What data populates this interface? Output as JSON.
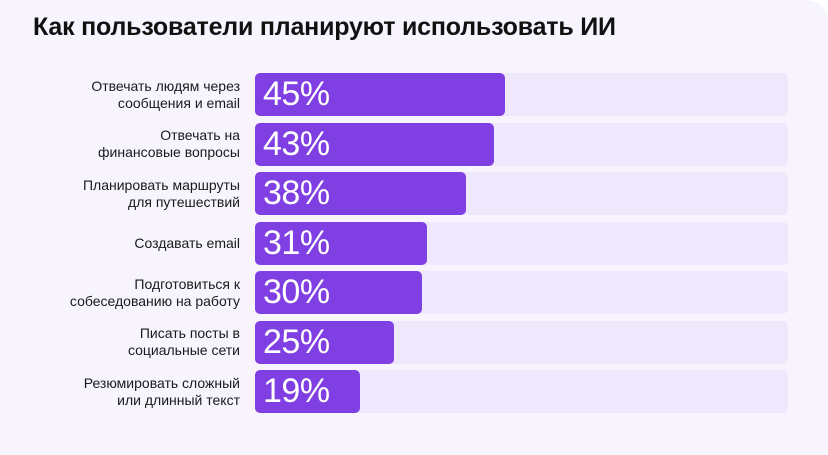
{
  "title": "Как пользователи планируют использовать ИИ",
  "colors": {
    "bar": "#7f3fe2",
    "track": "#efe8fc",
    "background": "#f7f4fe",
    "value_text": "#ffffff"
  },
  "chart_data": {
    "type": "bar",
    "orientation": "horizontal",
    "title": "Как пользователи планируют использовать ИИ",
    "categories": [
      "Отвечать людям через\nсообщения и email",
      "Отвечать на\nфинансовые вопросы",
      "Планировать маршруты\nдля путешествий",
      "Создавать email",
      "Подготовиться к\nсобеседованию на работу",
      "Писать посты в\nсоциальные сети",
      "Резюмировать сложный\nили длинный текст"
    ],
    "values": [
      45,
      43,
      38,
      31,
      30,
      25,
      19
    ],
    "value_labels": [
      "45%",
      "43%",
      "38%",
      "31%",
      "30%",
      "25%",
      "19%"
    ],
    "unit": "%",
    "xlim": [
      0,
      96
    ],
    "grid": false,
    "legend": "none"
  }
}
